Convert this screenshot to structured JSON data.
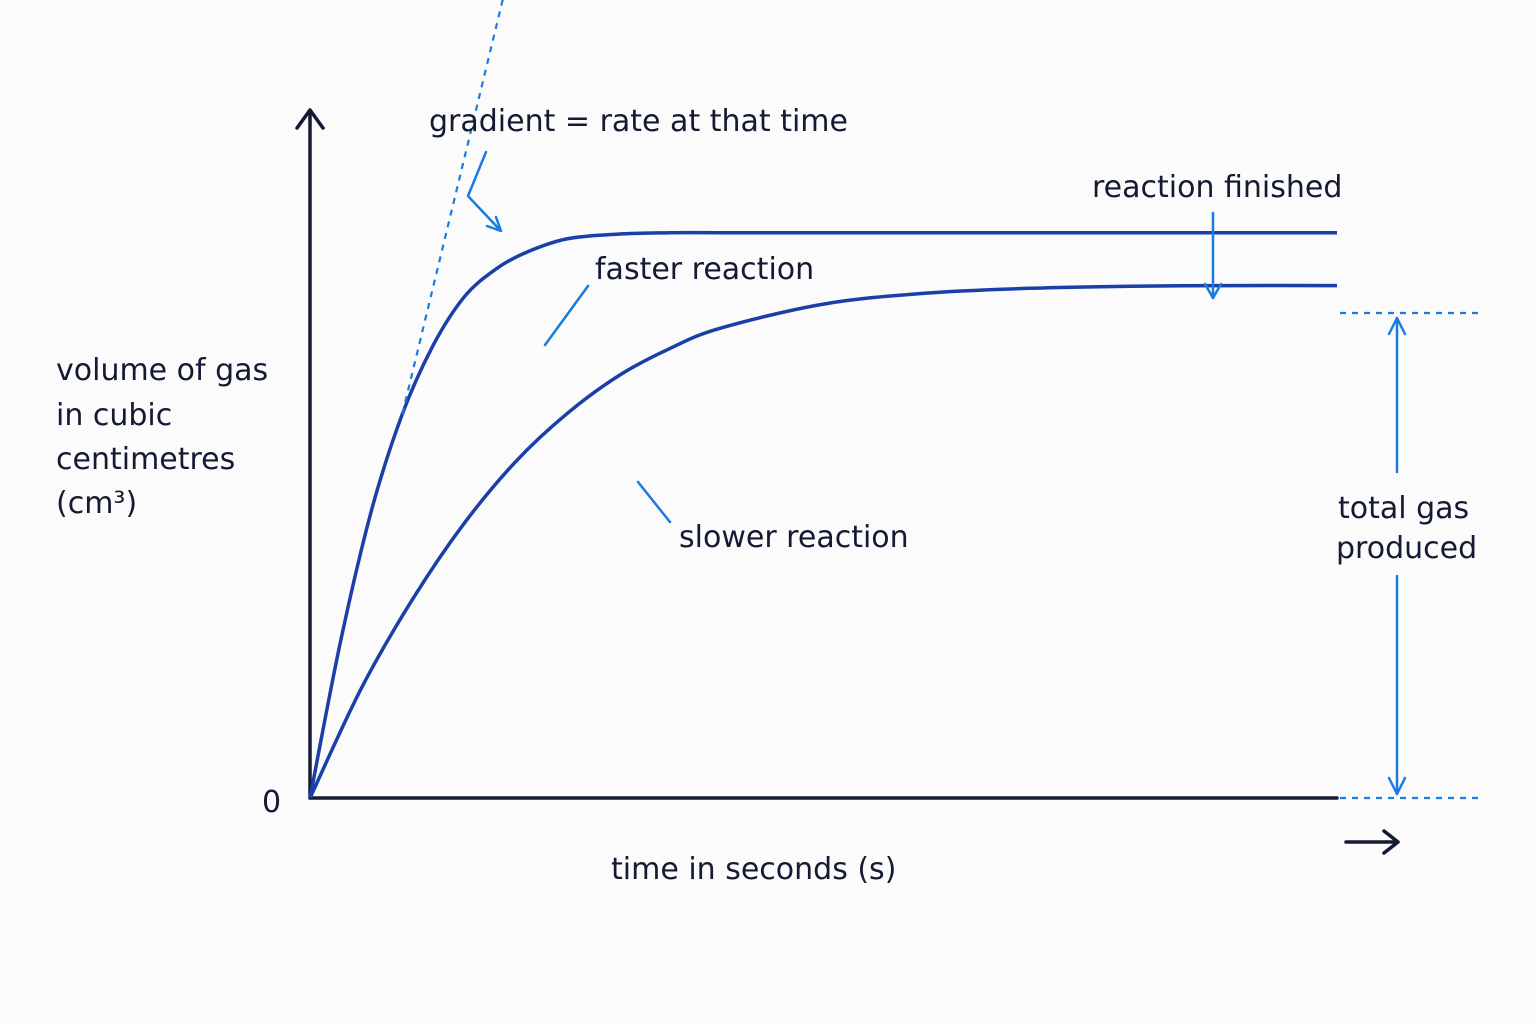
{
  "chart_data": {
    "type": "line",
    "title": "",
    "xlabel": "time in seconds (s)",
    "ylabel": [
      "volume of gas",
      "in cubic",
      "centimetres",
      "(cm³)"
    ],
    "y_origin_label": "0",
    "xlim": [
      0,
      100
    ],
    "ylim": [
      0,
      100
    ],
    "grid": false,
    "series": [
      {
        "name": "faster reaction",
        "x": [
          0,
          3,
          6,
          9,
          12,
          15,
          18,
          21,
          25,
          30,
          35,
          40,
          50,
          60,
          70,
          80,
          90,
          100
        ],
        "y": [
          0,
          23,
          42,
          56,
          66,
          73,
          77,
          79.5,
          81.5,
          82.2,
          82.4,
          82.4,
          82.4,
          82.4,
          82.4,
          82.4,
          82.4,
          82.4
        ]
      },
      {
        "name": "slower reaction",
        "x": [
          0,
          5,
          10,
          15,
          20,
          25,
          30,
          35,
          40,
          50,
          60,
          70,
          80,
          90,
          100
        ],
        "y": [
          0,
          16,
          29,
          40,
          49,
          56,
          61.5,
          65.5,
          68.5,
          72,
          73.6,
          74.3,
          74.6,
          74.7,
          74.7
        ]
      }
    ],
    "tangent": {
      "x": [
        9,
        20
      ],
      "y": [
        56,
        124
      ]
    },
    "annotations": {
      "gradient": "gradient = rate at that time",
      "finished": "reaction finished",
      "total": [
        "total gas",
        "produced"
      ]
    },
    "colors": {
      "curve": "#1a3fa8",
      "annotation": "#1a7be0",
      "axis": "#141a33"
    }
  }
}
